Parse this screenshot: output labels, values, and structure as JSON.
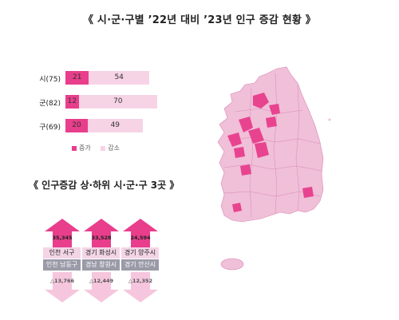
{
  "title": "《 시·군·구별 ’22년 대비 ’23년 인구 증감 현황 》",
  "subtitle": "《 인구증감 상·하위 시·군·구 3곳 》",
  "colors": {
    "increase": "#e83e8c",
    "decrease": "#f7d3e6",
    "map_increase": "#e8438f",
    "map_decrease": "#f0bfd8",
    "down_arrow": "#f5c6dd",
    "name_up_bg": "#f3d5e6",
    "name_down_bg": "#9a9aa8"
  },
  "chart_data": [
    {
      "type": "bar",
      "orientation": "horizontal",
      "stacked": true,
      "categories": [
        "시(75)",
        "군(82)",
        "구(69)"
      ],
      "series": [
        {
          "name": "증가",
          "values": [
            21,
            12,
            20
          ]
        },
        {
          "name": "감소",
          "values": [
            54,
            70,
            49
          ]
        }
      ],
      "legend_position": "bottom"
    },
    {
      "type": "table",
      "top3_increase": [
        {
          "value": "35,345",
          "name": "인천 서구"
        },
        {
          "value": "33,528",
          "name": "경기 화성시"
        },
        {
          "value": "24,594",
          "name": "경기 양주시"
        }
      ],
      "top3_decrease": [
        {
          "value": "△13,766",
          "name": "인천 남동구"
        },
        {
          "value": "△12,449",
          "name": "경남 창원시"
        },
        {
          "value": "△12,352",
          "name": "경기 안산시"
        }
      ]
    }
  ]
}
